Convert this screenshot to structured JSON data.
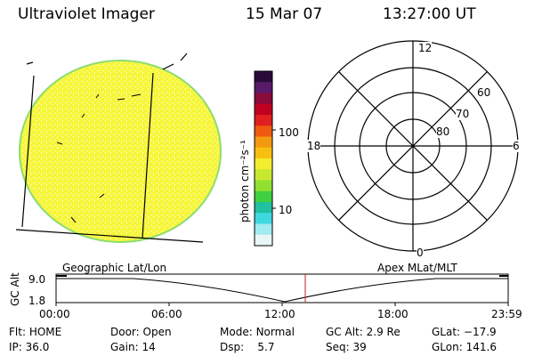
{
  "header": {
    "instrument": "Ultraviolet Imager",
    "date": "15 Mar 07",
    "time": "13:27:00 UT"
  },
  "colorbar": {
    "unit_label": "photon cm⁻²s⁻¹",
    "ticks": [
      "100",
      "10"
    ],
    "colors": [
      "#2a0a3a",
      "#5a1a6a",
      "#8a0a3a",
      "#c00020",
      "#e02020",
      "#f05a10",
      "#f49a10",
      "#f7c010",
      "#f3ec30",
      "#c8e830",
      "#90e030",
      "#40d040",
      "#20c0a0",
      "#40d8e0",
      "#a0eaf0",
      "#e8f6f6"
    ]
  },
  "polar_plot": {
    "hour_labels": {
      "top": "12",
      "left": "18",
      "right": "6",
      "bottom": "0"
    },
    "lat_labels": [
      "60",
      "70",
      "80"
    ]
  },
  "timeline": {
    "left_title": "Geographic Lat/Lon",
    "right_title": "Apex  MLat/MLT",
    "yaxis_label": "GC Alt",
    "y_ticks": [
      "9.0",
      "1.8"
    ],
    "x_ticks": [
      "00:00",
      "06:00",
      "12:00",
      "18:00",
      "23:59"
    ],
    "current_marker_time": "13:27"
  },
  "status": {
    "flt_label": "Flt:",
    "flt_value": "HOME",
    "ip_label": "IP:",
    "ip_value": "36.0",
    "door_label": "Door:",
    "door_value": "Open",
    "gain_label": "Gain:",
    "gain_value": "14",
    "mode_label": "Mode:",
    "mode_value": "Normal",
    "dsp_label": "Dsp:",
    "dsp_value": "5.7",
    "gcalt_label": "GC Alt:",
    "gcalt_value": "2.9 Re",
    "seq_label": "Seq:",
    "seq_value": "39",
    "glat_label": "GLat:",
    "glat_value": "−17.9",
    "glon_label": "GLon:",
    "glon_value": "141.6"
  },
  "colors": {
    "disk_fill": "#f7f740",
    "disk_edge": "#7edc6a",
    "marker": "#c02020"
  }
}
